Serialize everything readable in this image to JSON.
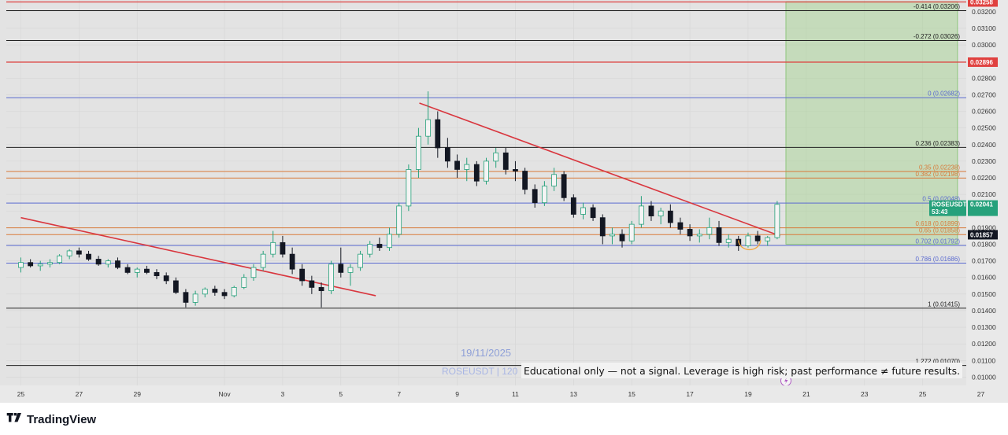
{
  "chart_data": {
    "type": "candlestick",
    "symbol_label": "ROSEUSDT",
    "watermark": {
      "date": "19/11/2025",
      "symbol_line": "ROSEUSDT | 120"
    },
    "disclaimer": "Educational only — not a signal. Leverage is high risk; past performance ≠ future results.",
    "y_range": [
      0.0095,
      0.0327
    ],
    "x_range": [
      -0.5,
      32.5
    ],
    "x_ticks": [
      {
        "x": 0,
        "label": "25"
      },
      {
        "x": 2,
        "label": "27"
      },
      {
        "x": 4,
        "label": "29"
      },
      {
        "x": 7,
        "label": "Nov"
      },
      {
        "x": 9,
        "label": "3"
      },
      {
        "x": 11,
        "label": "5"
      },
      {
        "x": 13,
        "label": "7"
      },
      {
        "x": 15,
        "label": "9"
      },
      {
        "x": 17,
        "label": "11"
      },
      {
        "x": 19,
        "label": "13"
      },
      {
        "x": 21,
        "label": "15"
      },
      {
        "x": 23,
        "label": "17"
      },
      {
        "x": 25,
        "label": "19"
      },
      {
        "x": 27,
        "label": "21"
      },
      {
        "x": 29,
        "label": "23"
      },
      {
        "x": 31,
        "label": "25"
      },
      {
        "x": 33,
        "label": "27"
      }
    ],
    "y_ticks": [
      "0.03200",
      "0.03100",
      "0.03000",
      "0.02900",
      "0.02800",
      "0.02700",
      "0.02600",
      "0.02500",
      "0.02400",
      "0.02300",
      "0.02200",
      "0.02100",
      "0.02000",
      "0.01900",
      "0.01800",
      "0.01700",
      "0.01600",
      "0.01500",
      "0.01400",
      "0.01300",
      "0.01200",
      "0.01100",
      "0.01000"
    ],
    "fib_levels": [
      {
        "label": "-0.414 (0.03206)",
        "price": 0.03206,
        "color": "#222222"
      },
      {
        "label": "-0.272 (0.03026)",
        "price": 0.03026,
        "color": "#222222"
      },
      {
        "label": "0 (0.02682)",
        "price": 0.02682,
        "color": "#5a6ad0"
      },
      {
        "label": "0.236 (0.02383)",
        "price": 0.02383,
        "color": "#222222"
      },
      {
        "label": "0.35 (0.02238)",
        "price": 0.02238,
        "color": "#d97a3a"
      },
      {
        "label": "0.382 (0.02198)",
        "price": 0.02198,
        "color": "#d97a3a"
      },
      {
        "label": "0.5 (0.02048)",
        "price": 0.02048,
        "color": "#5a6ad0"
      },
      {
        "label": "0.618 (0.01899)",
        "price": 0.01899,
        "color": "#d97a3a"
      },
      {
        "label": "0.65 (0.01858)",
        "price": 0.01858,
        "color": "#d97a3a"
      },
      {
        "label": "0.702 (0.01792)",
        "price": 0.01792,
        "color": "#5a6ad0"
      },
      {
        "label": "0.786 (0.01686)",
        "price": 0.01686,
        "color": "#5a6ad0"
      },
      {
        "label": "1 (0.01415)",
        "price": 0.01415,
        "color": "#222222"
      },
      {
        "label": "1.272 (0.01070)",
        "price": 0.0107,
        "color": "#222222"
      }
    ],
    "red_levels": [
      0.03258,
      0.02896
    ],
    "badges": [
      {
        "text": "0.03258",
        "price": 0.03258,
        "color": "#e0413f"
      },
      {
        "text": "0.02896",
        "price": 0.02896,
        "color": "#e0413f"
      },
      {
        "text": "ROSEUSDT",
        "text2": "0.02041",
        "text3": "53:43",
        "price": 0.02041,
        "color": "#26a17b"
      },
      {
        "text": "0.01857",
        "price": 0.01857,
        "color": "#131722"
      }
    ],
    "trendlines": [
      {
        "from": [
          0,
          0.0196
        ],
        "to": [
          12.2,
          0.0149
        ]
      },
      {
        "from": [
          13.7,
          0.0265
        ],
        "to": [
          26.1,
          0.0185
        ]
      }
    ],
    "target_box": {
      "x_from": 26.3,
      "x_to": 32.2,
      "price_top": 0.0326,
      "price_bottom": 0.018
    },
    "up_color": "#26a17b",
    "down_color": "#131722",
    "candles": [
      [
        0.0,
        0.0166,
        0.0172,
        0.0163,
        0.0169
      ],
      [
        0.33,
        0.0169,
        0.0171,
        0.0166,
        0.0167
      ],
      [
        0.67,
        0.0167,
        0.017,
        0.0164,
        0.0168
      ],
      [
        1.0,
        0.0168,
        0.0171,
        0.0166,
        0.0169
      ],
      [
        1.33,
        0.0169,
        0.0174,
        0.0168,
        0.0173
      ],
      [
        1.67,
        0.0173,
        0.0177,
        0.0171,
        0.0176
      ],
      [
        2.0,
        0.0176,
        0.0178,
        0.0172,
        0.0174
      ],
      [
        2.33,
        0.0174,
        0.0176,
        0.017,
        0.0171
      ],
      [
        2.67,
        0.0171,
        0.0173,
        0.0167,
        0.0168
      ],
      [
        3.0,
        0.0168,
        0.0171,
        0.0166,
        0.017
      ],
      [
        3.33,
        0.017,
        0.0172,
        0.0165,
        0.0166
      ],
      [
        3.67,
        0.0166,
        0.0168,
        0.0162,
        0.0163
      ],
      [
        4.0,
        0.0163,
        0.0166,
        0.016,
        0.0165
      ],
      [
        4.33,
        0.0165,
        0.0167,
        0.0162,
        0.0163
      ],
      [
        4.67,
        0.0163,
        0.0165,
        0.0159,
        0.0161
      ],
      [
        5.0,
        0.0161,
        0.0163,
        0.0156,
        0.0158
      ],
      [
        5.33,
        0.0158,
        0.016,
        0.015,
        0.0151
      ],
      [
        5.67,
        0.0151,
        0.0153,
        0.0142,
        0.0145
      ],
      [
        6.0,
        0.0145,
        0.0152,
        0.0143,
        0.015
      ],
      [
        6.33,
        0.015,
        0.0154,
        0.0148,
        0.0153
      ],
      [
        6.67,
        0.0153,
        0.0155,
        0.0149,
        0.0151
      ],
      [
        7.0,
        0.0151,
        0.0153,
        0.0147,
        0.0149
      ],
      [
        7.33,
        0.0149,
        0.0155,
        0.0148,
        0.0154
      ],
      [
        7.67,
        0.0154,
        0.0162,
        0.0153,
        0.016
      ],
      [
        8.0,
        0.016,
        0.0168,
        0.0158,
        0.0166
      ],
      [
        8.33,
        0.0166,
        0.0176,
        0.0164,
        0.0174
      ],
      [
        8.67,
        0.0174,
        0.0188,
        0.0172,
        0.0181
      ],
      [
        9.0,
        0.0181,
        0.0185,
        0.0172,
        0.0174
      ],
      [
        9.33,
        0.0174,
        0.0178,
        0.0162,
        0.0165
      ],
      [
        9.67,
        0.0165,
        0.0168,
        0.0155,
        0.0158
      ],
      [
        10.0,
        0.0158,
        0.0161,
        0.015,
        0.0154
      ],
      [
        10.33,
        0.0154,
        0.0157,
        0.0142,
        0.0152
      ],
      [
        10.67,
        0.0152,
        0.017,
        0.015,
        0.0168
      ],
      [
        11.0,
        0.0168,
        0.0178,
        0.016,
        0.0163
      ],
      [
        11.33,
        0.0163,
        0.0168,
        0.0155,
        0.0166
      ],
      [
        11.67,
        0.0166,
        0.0176,
        0.0164,
        0.0174
      ],
      [
        12.0,
        0.0174,
        0.0182,
        0.0172,
        0.018
      ],
      [
        12.33,
        0.018,
        0.0184,
        0.0176,
        0.0178
      ],
      [
        12.67,
        0.0178,
        0.019,
        0.0176,
        0.0186
      ],
      [
        13.0,
        0.0186,
        0.0205,
        0.0184,
        0.0203
      ],
      [
        13.33,
        0.0203,
        0.0228,
        0.02,
        0.0225
      ],
      [
        13.67,
        0.0225,
        0.025,
        0.022,
        0.0245
      ],
      [
        14.0,
        0.0245,
        0.0272,
        0.024,
        0.0255
      ],
      [
        14.33,
        0.0255,
        0.026,
        0.0232,
        0.0238
      ],
      [
        14.67,
        0.0238,
        0.0244,
        0.0226,
        0.023
      ],
      [
        15.0,
        0.023,
        0.0234,
        0.022,
        0.0225
      ],
      [
        15.33,
        0.0225,
        0.0232,
        0.0218,
        0.0228
      ],
      [
        15.67,
        0.0228,
        0.023,
        0.0215,
        0.0218
      ],
      [
        16.0,
        0.0218,
        0.0232,
        0.0216,
        0.023
      ],
      [
        16.33,
        0.023,
        0.0238,
        0.0226,
        0.0235
      ],
      [
        16.67,
        0.0235,
        0.0238,
        0.0222,
        0.0225
      ],
      [
        17.0,
        0.0225,
        0.023,
        0.0218,
        0.0224
      ],
      [
        17.33,
        0.0224,
        0.0226,
        0.021,
        0.0213
      ],
      [
        17.67,
        0.0213,
        0.0216,
        0.0202,
        0.0205
      ],
      [
        18.0,
        0.0205,
        0.0218,
        0.0203,
        0.0215
      ],
      [
        18.33,
        0.0215,
        0.0226,
        0.0212,
        0.0222
      ],
      [
        18.67,
        0.0222,
        0.0224,
        0.0206,
        0.0208
      ],
      [
        19.0,
        0.0208,
        0.021,
        0.0196,
        0.0198
      ],
      [
        19.33,
        0.0198,
        0.0205,
        0.0195,
        0.0202
      ],
      [
        19.67,
        0.0202,
        0.0204,
        0.0194,
        0.0196
      ],
      [
        20.0,
        0.0196,
        0.0198,
        0.018,
        0.0185
      ],
      [
        20.33,
        0.0185,
        0.019,
        0.018,
        0.0186
      ],
      [
        20.67,
        0.0186,
        0.0189,
        0.0178,
        0.0182
      ],
      [
        21.0,
        0.0182,
        0.0194,
        0.018,
        0.0192
      ],
      [
        21.33,
        0.0192,
        0.0209,
        0.019,
        0.0203
      ],
      [
        21.67,
        0.0203,
        0.0206,
        0.0194,
        0.0197
      ],
      [
        22.0,
        0.0197,
        0.0202,
        0.0192,
        0.02
      ],
      [
        22.33,
        0.02,
        0.0204,
        0.019,
        0.0193
      ],
      [
        22.67,
        0.0193,
        0.0196,
        0.0186,
        0.0189
      ],
      [
        23.0,
        0.0189,
        0.0192,
        0.0182,
        0.0185
      ],
      [
        23.33,
        0.0185,
        0.0189,
        0.0181,
        0.0186
      ],
      [
        23.67,
        0.0186,
        0.0196,
        0.0183,
        0.019
      ],
      [
        24.0,
        0.019,
        0.0194,
        0.0179,
        0.0181
      ],
      [
        24.33,
        0.0181,
        0.0186,
        0.0178,
        0.0183
      ],
      [
        24.67,
        0.0183,
        0.0185,
        0.0176,
        0.0179
      ],
      [
        25.0,
        0.0179,
        0.0187,
        0.0178,
        0.0185
      ],
      [
        25.33,
        0.0185,
        0.0188,
        0.018,
        0.0182
      ],
      [
        25.67,
        0.0182,
        0.0185,
        0.0179,
        0.0184
      ],
      [
        26.0,
        0.0184,
        0.0206,
        0.0183,
        0.0204
      ]
    ]
  }
}
